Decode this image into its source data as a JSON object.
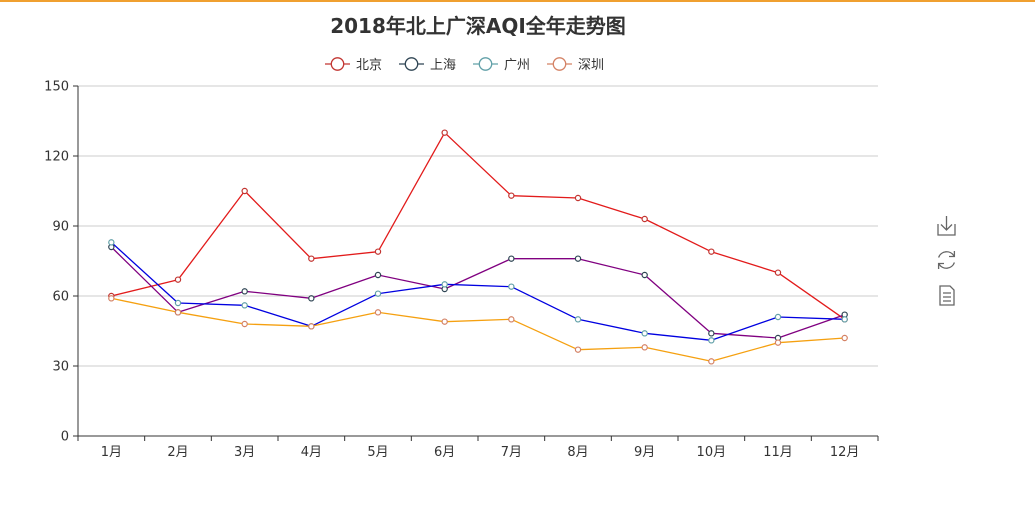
{
  "chart_data": {
    "type": "line",
    "title": "2018年北上广深AQI全年走势图",
    "categories": [
      "1月",
      "2月",
      "3月",
      "4月",
      "5月",
      "6月",
      "7月",
      "8月",
      "9月",
      "10月",
      "11月",
      "12月"
    ],
    "ylim": [
      0,
      150
    ],
    "yticks": [
      0,
      30,
      60,
      90,
      120,
      150
    ],
    "grid": true,
    "legend_position": "top-center",
    "series": [
      {
        "name": "北京",
        "color": "#e21b1b",
        "legend_color": "#c23531",
        "values": [
          60,
          67,
          105,
          76,
          79,
          130,
          103,
          102,
          93,
          79,
          70,
          50
        ]
      },
      {
        "name": "上海",
        "color": "#800080",
        "legend_color": "#2f4554",
        "values": [
          81,
          53,
          62,
          59,
          69,
          63,
          76,
          76,
          69,
          44,
          42,
          52
        ]
      },
      {
        "name": "广州",
        "color": "#0000e0",
        "legend_color": "#61a0a8",
        "values": [
          83,
          57,
          56,
          47,
          61,
          65,
          64,
          50,
          44,
          41,
          51,
          50
        ]
      },
      {
        "name": "深圳",
        "color": "#f5a010",
        "legend_color": "#d48265",
        "values": [
          59,
          53,
          48,
          47,
          53,
          49,
          50,
          37,
          38,
          32,
          40,
          42
        ]
      }
    ]
  },
  "toolbox": {
    "items": [
      "download-icon",
      "refresh-icon",
      "data-view-icon"
    ]
  }
}
